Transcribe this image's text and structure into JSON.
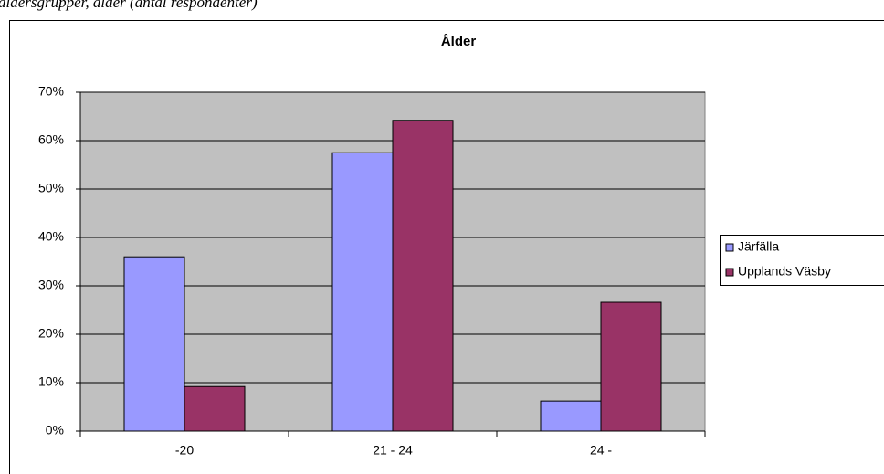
{
  "caption": "åldersgrupper, ålder (antal respondenter)",
  "chart_data": {
    "type": "bar",
    "title": "Ålder",
    "categories": [
      "-20",
      "21 - 24",
      "24 -"
    ],
    "series": [
      {
        "name": "Järfälla",
        "color": "#9999ff",
        "values": [
          36,
          57.5,
          6.2
        ]
      },
      {
        "name": "Upplands Väsby",
        "color": "#993366",
        "values": [
          9.2,
          64.2,
          26.6
        ]
      }
    ],
    "ylim": [
      0,
      70
    ],
    "yticks": [
      {
        "value": 0,
        "label": "0%"
      },
      {
        "value": 10,
        "label": "10%"
      },
      {
        "value": 20,
        "label": "20%"
      },
      {
        "value": 30,
        "label": "30%"
      },
      {
        "value": 40,
        "label": "40%"
      },
      {
        "value": 50,
        "label": "50%"
      },
      {
        "value": 60,
        "label": "60%"
      },
      {
        "value": 70,
        "label": "70%"
      }
    ],
    "grid": true,
    "legend": "right"
  }
}
